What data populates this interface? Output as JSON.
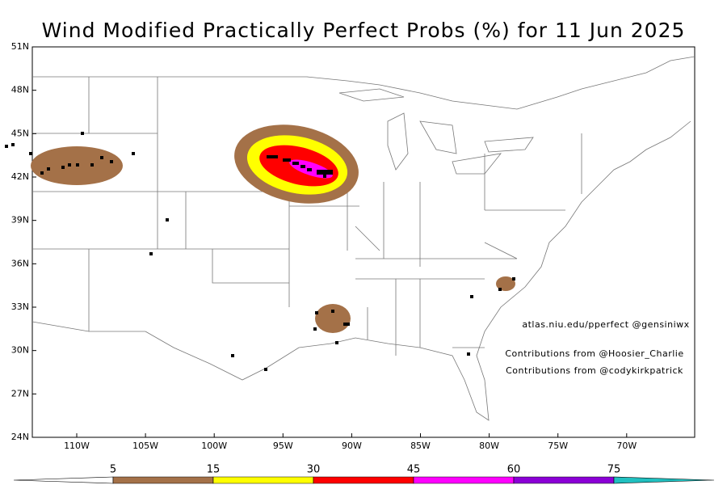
{
  "title": "Wind Modified Practically Perfect Probs (%) for 11 Jun 2025",
  "map": {
    "lat_labels": [
      "51N",
      "48N",
      "45N",
      "42N",
      "39N",
      "36N",
      "33N",
      "30N",
      "27N",
      "24N"
    ],
    "lon_labels": [
      "110W",
      "105W",
      "100W",
      "95W",
      "90W",
      "85W",
      "80W",
      "75W",
      "70W"
    ]
  },
  "annotations": [
    "atlas.niu.edu/pperfect @gensiniwx",
    "Contributions from @Hoosier_Charlie",
    "Contributions from @codykirkpatrick"
  ],
  "colorbar": {
    "labels": [
      5,
      15,
      30,
      45,
      60,
      75
    ],
    "colors": [
      "#ffffff",
      "#a47148",
      "#ffff00",
      "#ff0000",
      "#ff00ff",
      "#8b00d6",
      "#20c0c0"
    ]
  }
}
